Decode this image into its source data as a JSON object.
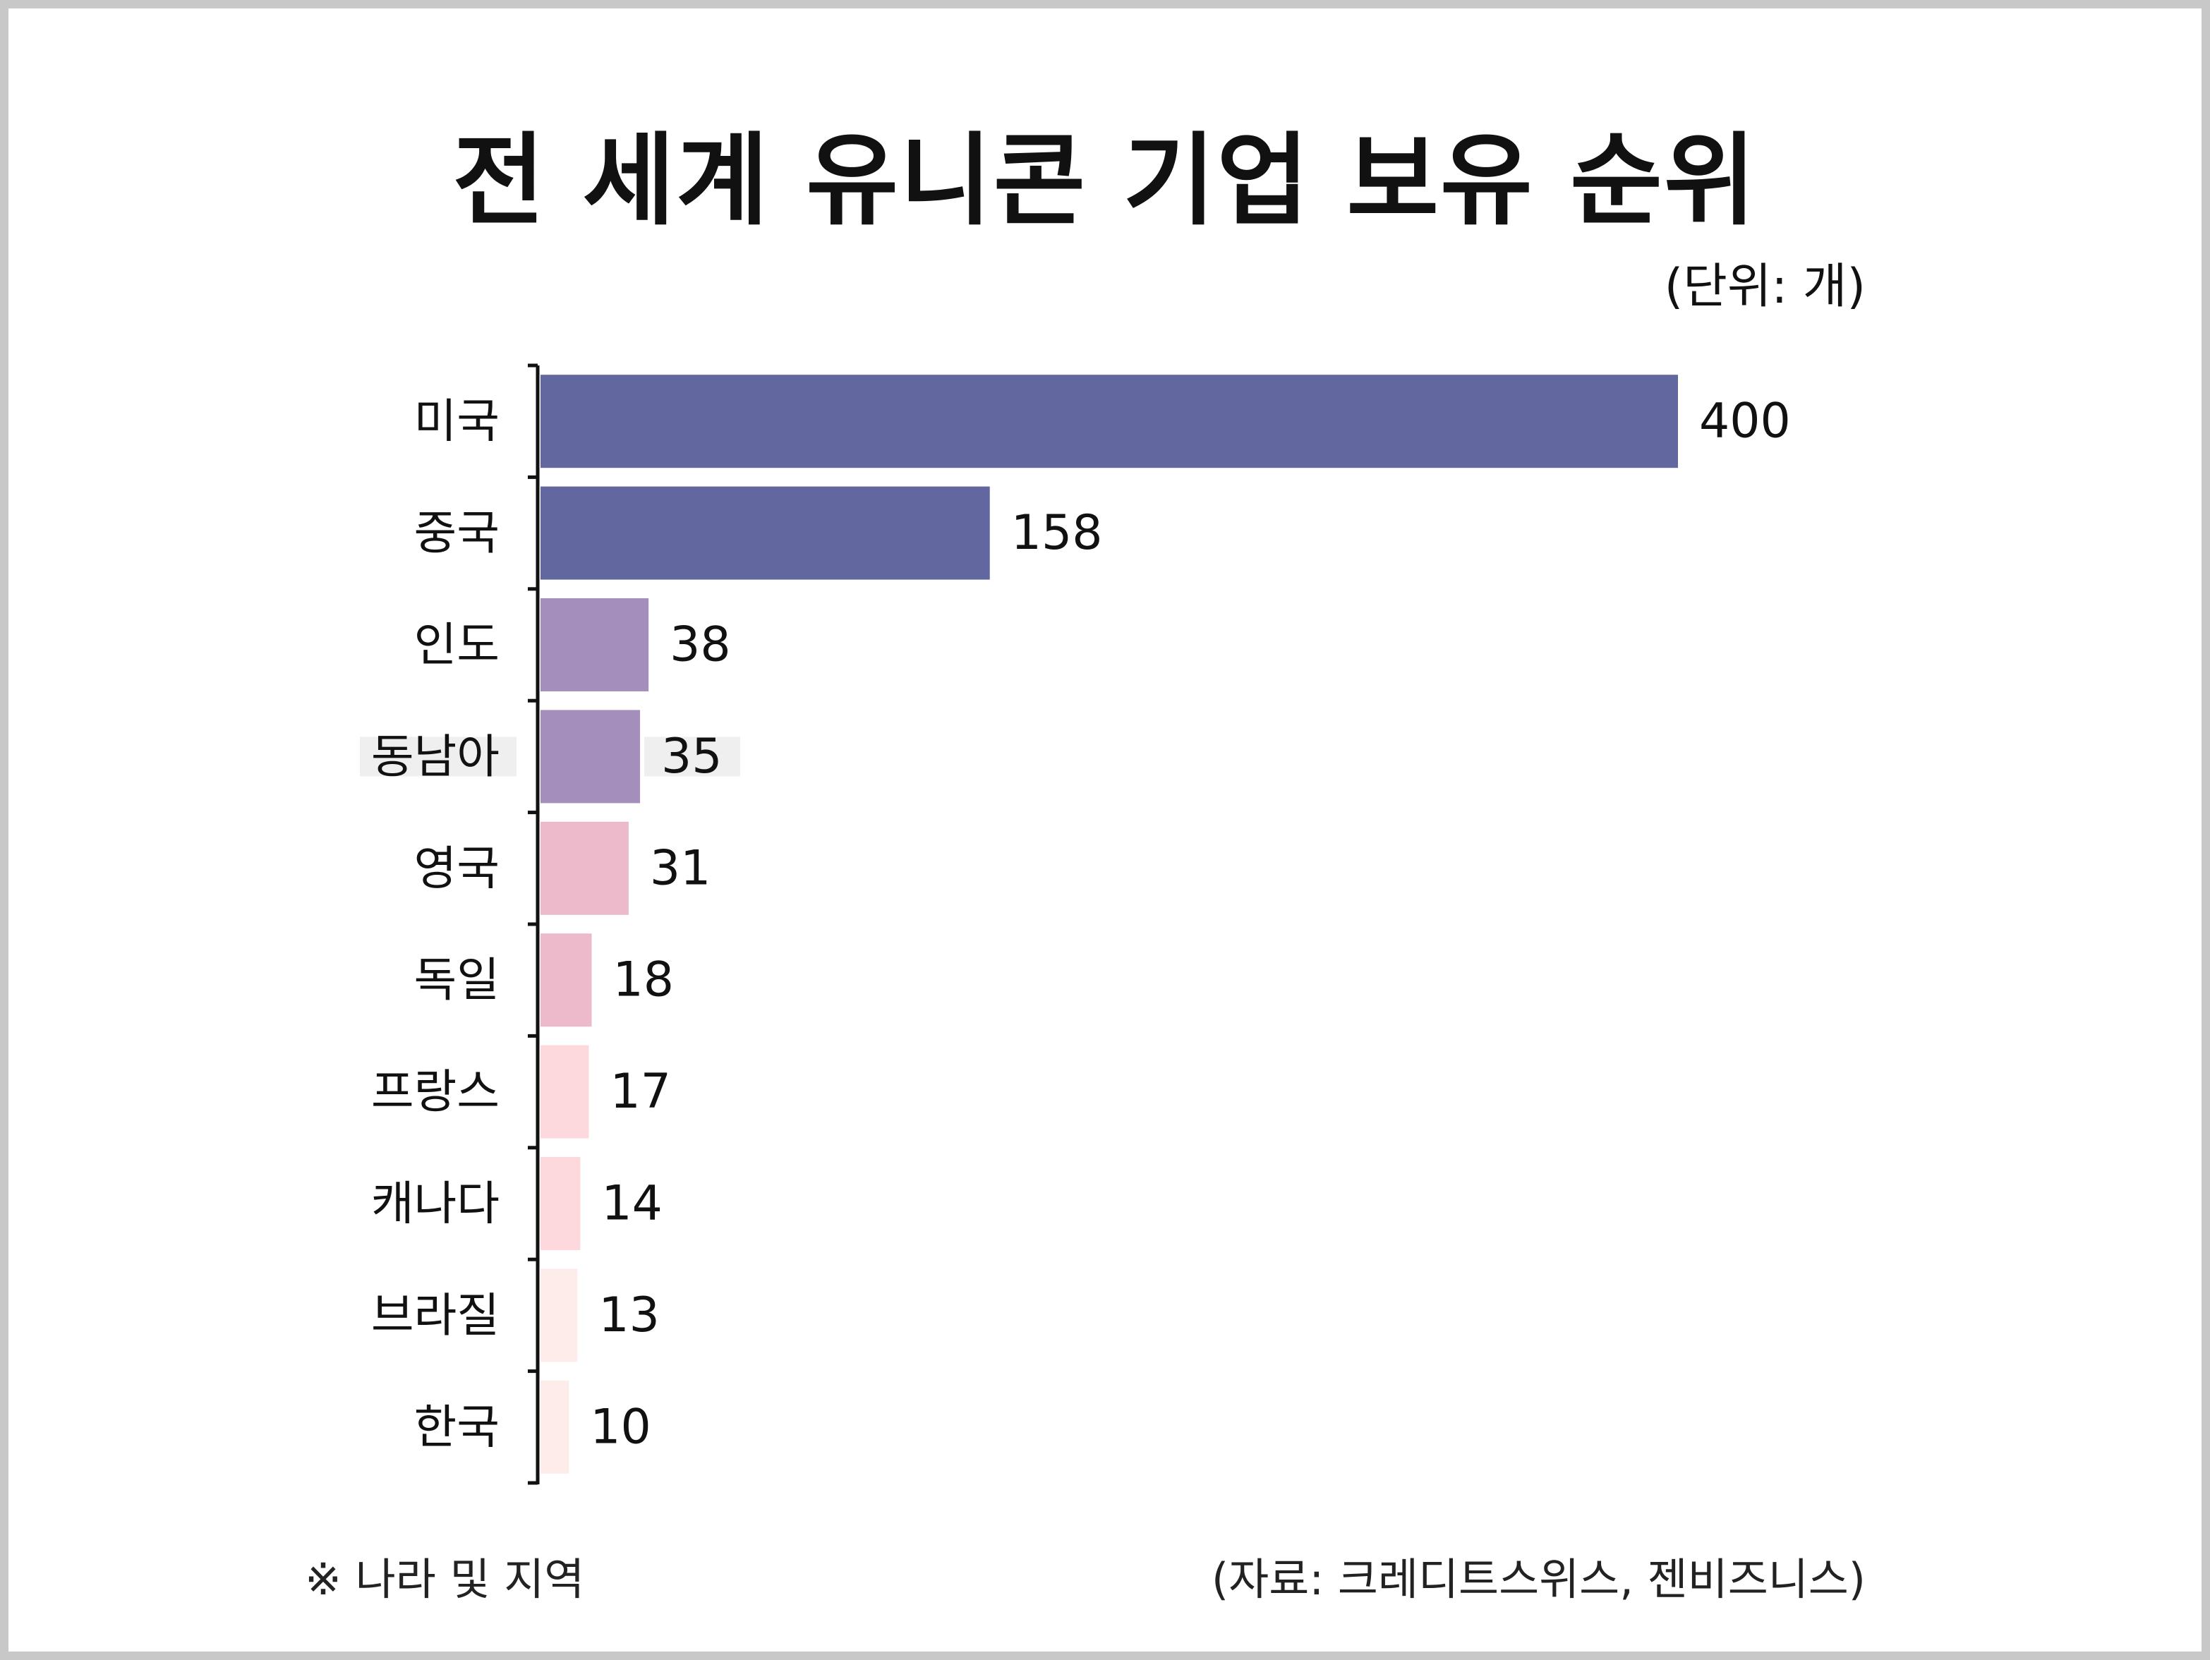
{
  "title": "전 세계 유니콘 기업 보유 순위",
  "unit_label": "(단위: 개)",
  "note": "※ 나라 및 지역",
  "source": "(자료: 크레디트스위스, 젠비즈니스)",
  "chart_data": {
    "type": "bar",
    "orientation": "horizontal",
    "title": "전 세계 유니콘 기업 보유 순위",
    "unit": "(단위: 개)",
    "categories": [
      "미국",
      "중국",
      "인도",
      "동남아",
      "영국",
      "독일",
      "프랑스",
      "캐나다",
      "브라질",
      "한국"
    ],
    "values": [
      400,
      158,
      38,
      35,
      31,
      18,
      17,
      14,
      13,
      10
    ],
    "value_labels": [
      "400",
      "158",
      "38",
      "35",
      "31",
      "18",
      "17",
      "14",
      "13",
      "10"
    ],
    "xlim": [
      0,
      400
    ],
    "grid": false,
    "legend": "none",
    "highlighted_category": "동남아",
    "colors": [
      "#62689f",
      "#62689f",
      "#a48fbc",
      "#a48fbc",
      "#ecbacb",
      "#ecbacb",
      "#fdd9de",
      "#fdd9de",
      "#feeceb",
      "#feeceb"
    ],
    "highlight_color": "#efefef"
  }
}
